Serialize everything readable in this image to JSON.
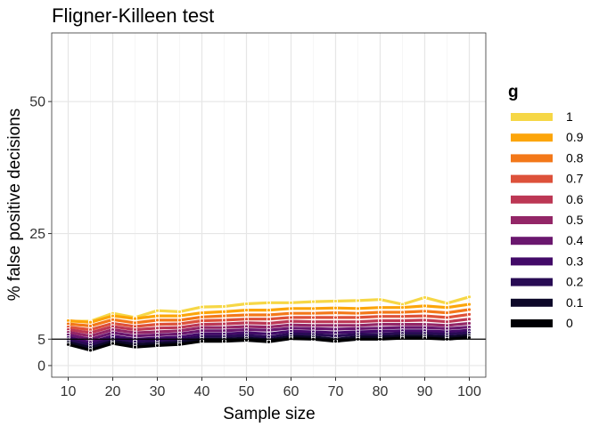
{
  "chart_data": {
    "type": "line",
    "title": "Fligner-Killeen test",
    "xlabel": "Sample size",
    "ylabel": "% false positive decisions",
    "x": [
      10,
      15,
      20,
      25,
      30,
      35,
      40,
      45,
      50,
      55,
      60,
      65,
      70,
      75,
      80,
      85,
      90,
      95,
      100
    ],
    "xlim": [
      6.3,
      103.7
    ],
    "ylim": [
      -2.2,
      63
    ],
    "x_ticks": [
      10,
      20,
      30,
      40,
      50,
      60,
      70,
      80,
      90,
      100
    ],
    "y_ticks": [
      0,
      5,
      25,
      50
    ],
    "reference_line": 5,
    "grid": true,
    "legend": {
      "title": "g",
      "position": "right"
    },
    "series": [
      {
        "name": "0",
        "color": "#000004",
        "values": [
          4.0,
          2.9,
          4.2,
          3.5,
          3.8,
          4.0,
          4.6,
          4.6,
          4.8,
          4.5,
          5.1,
          5.0,
          4.6,
          5.0,
          5.0,
          5.2,
          5.2,
          5.0,
          5.3
        ]
      },
      {
        "name": "0.1",
        "color": "#0D0829",
        "values": [
          4.4,
          3.4,
          4.6,
          4.0,
          4.2,
          4.4,
          5.0,
          5.0,
          5.2,
          4.9,
          5.5,
          5.4,
          5.0,
          5.4,
          5.4,
          5.6,
          5.6,
          5.4,
          5.7
        ]
      },
      {
        "name": "0.2",
        "color": "#280B54",
        "values": [
          4.9,
          3.9,
          5.1,
          4.5,
          4.7,
          4.9,
          5.5,
          5.5,
          5.7,
          5.4,
          6.0,
          5.9,
          5.6,
          5.9,
          5.9,
          6.1,
          6.1,
          5.9,
          6.2
        ]
      },
      {
        "name": "0.3",
        "color": "#420A68",
        "values": [
          5.3,
          4.4,
          5.6,
          5.0,
          5.2,
          5.4,
          6.0,
          6.0,
          6.2,
          6.0,
          6.5,
          6.4,
          6.2,
          6.4,
          6.5,
          6.6,
          6.6,
          6.4,
          6.7
        ]
      },
      {
        "name": "0.4",
        "color": "#6A176E",
        "values": [
          5.8,
          5.0,
          6.2,
          5.6,
          5.8,
          6.0,
          6.6,
          6.6,
          6.8,
          6.7,
          7.1,
          7.0,
          6.9,
          7.0,
          7.1,
          7.2,
          7.2,
          7.0,
          7.3
        ]
      },
      {
        "name": "0.5",
        "color": "#932667",
        "values": [
          6.3,
          5.6,
          6.8,
          6.2,
          6.4,
          6.6,
          7.2,
          7.2,
          7.4,
          7.3,
          7.7,
          7.6,
          7.6,
          7.6,
          7.8,
          7.8,
          7.8,
          7.6,
          8.0
        ]
      },
      {
        "name": "0.6",
        "color": "#BC3754",
        "values": [
          6.8,
          6.2,
          7.4,
          6.8,
          7.1,
          7.2,
          7.8,
          7.9,
          8.1,
          8.0,
          8.4,
          8.3,
          8.3,
          8.3,
          8.5,
          8.5,
          8.6,
          8.3,
          8.8
        ]
      },
      {
        "name": "0.7",
        "color": "#DD513A",
        "values": [
          7.3,
          6.8,
          8.0,
          7.4,
          7.8,
          7.9,
          8.5,
          8.6,
          8.8,
          8.8,
          9.1,
          9.1,
          9.1,
          9.1,
          9.3,
          9.3,
          9.4,
          9.1,
          9.7
        ]
      },
      {
        "name": "0.8",
        "color": "#F37819",
        "values": [
          7.9,
          7.5,
          8.7,
          8.1,
          8.6,
          8.6,
          9.2,
          9.4,
          9.6,
          9.6,
          9.9,
          9.9,
          10.0,
          9.9,
          10.1,
          10.1,
          10.3,
          10.0,
          10.6
        ]
      },
      {
        "name": "0.9",
        "color": "#FCA50A",
        "values": [
          8.5,
          8.2,
          9.4,
          8.9,
          9.4,
          9.4,
          10.0,
          10.2,
          10.5,
          10.5,
          10.8,
          10.8,
          10.9,
          10.8,
          11.0,
          11.0,
          11.3,
          11.0,
          11.6
        ]
      },
      {
        "name": "1",
        "color": "#F6D746",
        "values": [
          8.4,
          8.4,
          9.9,
          9.1,
          10.4,
          10.2,
          11.1,
          11.2,
          11.7,
          11.9,
          11.9,
          12.1,
          12.2,
          12.3,
          12.5,
          11.6,
          12.9,
          11.8,
          13.0
        ]
      }
    ]
  }
}
